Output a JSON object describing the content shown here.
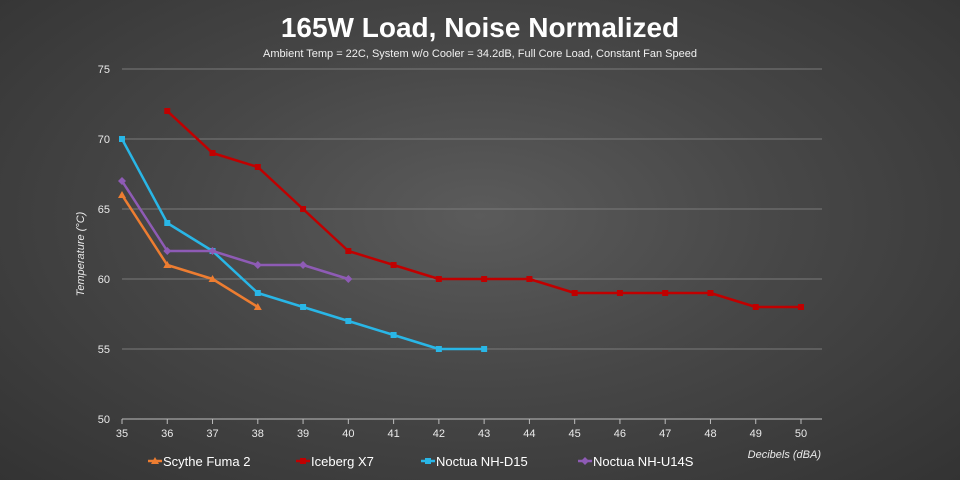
{
  "chart_data": {
    "type": "line",
    "title": "165W Load, Noise Normalized",
    "subtitle": "Ambient Temp = 22C, System w/o Cooler = 34.2dB, Full Core Load, Constant Fan Speed",
    "xlabel": "Decibels (dBA)",
    "ylabel": "Temperature (°C)",
    "xlim": [
      35,
      50
    ],
    "ylim": [
      50,
      75
    ],
    "x_ticks": [
      35,
      36,
      37,
      38,
      39,
      40,
      41,
      42,
      43,
      44,
      45,
      46,
      47,
      48,
      49,
      50
    ],
    "y_ticks": [
      50,
      55,
      60,
      65,
      70,
      75
    ],
    "grid": true,
    "legend_position": "bottom",
    "series": [
      {
        "name": "Scythe Fuma 2",
        "color": "#ed7d31",
        "marker": "triangle",
        "x": [
          35,
          36,
          37,
          38
        ],
        "y": [
          66,
          61,
          60,
          58
        ]
      },
      {
        "name": "Iceberg X7",
        "color": "#c00000",
        "marker": "square",
        "x": [
          36,
          37,
          38,
          39,
          40,
          41,
          42,
          43,
          44,
          45,
          46,
          47,
          48,
          49,
          50
        ],
        "y": [
          72,
          69,
          68,
          65,
          62,
          61,
          60,
          60,
          60,
          59,
          59,
          59,
          59,
          58,
          58
        ]
      },
      {
        "name": "Noctua NH-D15",
        "color": "#29b6e6",
        "marker": "square",
        "x": [
          35,
          36,
          37,
          38,
          39,
          40,
          41,
          42,
          43
        ],
        "y": [
          70,
          64,
          62,
          59,
          58,
          57,
          56,
          55,
          55
        ]
      },
      {
        "name": "Noctua NH-U14S",
        "color": "#8e5bb5",
        "marker": "diamond",
        "x": [
          35,
          36,
          37,
          38,
          39,
          40
        ],
        "y": [
          67,
          62,
          62,
          61,
          61,
          60
        ]
      }
    ]
  }
}
